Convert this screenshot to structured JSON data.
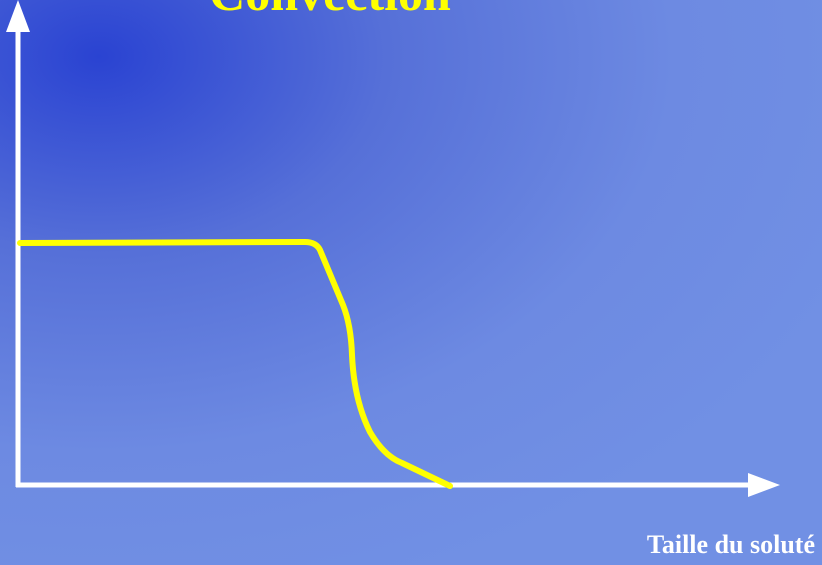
{
  "title": "Convection",
  "x_axis_label": "Taille du soluté"
}
